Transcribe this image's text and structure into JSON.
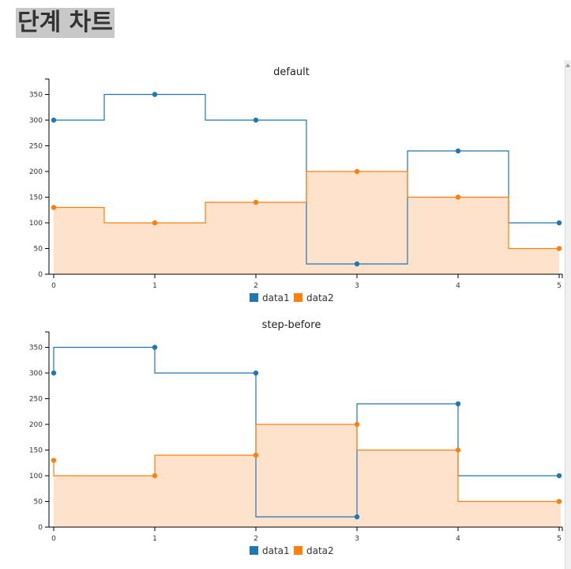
{
  "page": {
    "heading": "단계 차트"
  },
  "colors": {
    "data1": "#1f77b4",
    "data2": "#ff7f0e",
    "data2_area": "#ffe2cc"
  },
  "chart_data": [
    {
      "type": "area",
      "step": "default",
      "title": "default",
      "x": [
        0,
        1,
        2,
        3,
        4,
        5
      ],
      "xticks": [
        "0",
        "1",
        "2",
        "3",
        "4",
        "5"
      ],
      "yticks": [
        "0",
        "50",
        "100",
        "150",
        "200",
        "250",
        "300",
        "350"
      ],
      "ylim": [
        0,
        380
      ],
      "series": [
        {
          "name": "data1",
          "values": [
            300,
            350,
            300,
            20,
            240,
            100
          ],
          "fill": false
        },
        {
          "name": "data2",
          "values": [
            130,
            100,
            140,
            200,
            150,
            50
          ],
          "fill": true
        }
      ],
      "legend": [
        "data1",
        "data2"
      ]
    },
    {
      "type": "area",
      "step": "step-before",
      "title": "step-before",
      "x": [
        0,
        1,
        2,
        3,
        4,
        5
      ],
      "xticks": [
        "0",
        "1",
        "2",
        "3",
        "4",
        "5"
      ],
      "yticks": [
        "0",
        "50",
        "100",
        "150",
        "200",
        "250",
        "300",
        "350"
      ],
      "ylim": [
        0,
        380
      ],
      "series": [
        {
          "name": "data1",
          "values": [
            300,
            350,
            300,
            20,
            240,
            100
          ],
          "fill": false
        },
        {
          "name": "data2",
          "values": [
            130,
            100,
            140,
            200,
            150,
            50
          ],
          "fill": true
        }
      ],
      "legend": [
        "data1",
        "data2"
      ]
    }
  ]
}
